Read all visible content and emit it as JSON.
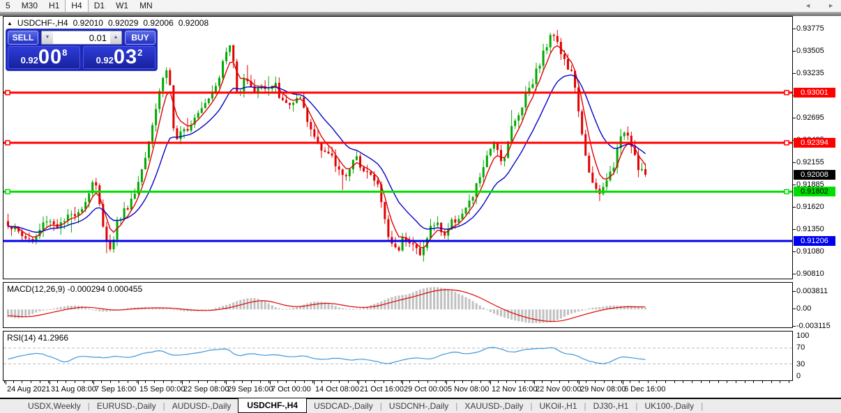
{
  "toolbar": {
    "timeframes": [
      "5",
      "M30",
      "H1",
      "H4",
      "D1",
      "W1",
      "MN"
    ],
    "active_timeframe": "H4"
  },
  "chart_header": {
    "collapse_icon": "▲",
    "symbol": "USDCHF-,H4",
    "open": "0.92010",
    "high": "0.92029",
    "low": "0.92006",
    "close": "0.92008"
  },
  "trade_panel": {
    "sell_label": "SELL",
    "buy_label": "BUY",
    "volume_value": "0.01",
    "volume_down_icon": "▼",
    "volume_up_icon": "▲",
    "sell_price": {
      "prefix": "0.92",
      "big": "00",
      "sup": "8"
    },
    "buy_price": {
      "prefix": "0.92",
      "big": "03",
      "sup": "2"
    }
  },
  "price_axis": {
    "ticks": [
      "0.93775",
      "0.93505",
      "0.93235",
      "0.92965",
      "0.92695",
      "0.92425",
      "0.92155",
      "0.91885",
      "0.91620",
      "0.91350",
      "0.91080",
      "0.90810"
    ],
    "badges": [
      {
        "label": "0.93001",
        "price": 0.93001,
        "bg": "#ff0000",
        "fg": "#ffffff"
      },
      {
        "label": "0.92394",
        "price": 0.92394,
        "bg": "#ff0000",
        "fg": "#ffffff"
      },
      {
        "label": "0.92008",
        "price": 0.92008,
        "bg": "#000000",
        "fg": "#ffffff"
      },
      {
        "label": "0.91802",
        "price": 0.91802,
        "bg": "#00dd00",
        "fg": "#000000"
      },
      {
        "label": "0.91206",
        "price": 0.91206,
        "bg": "#0000ee",
        "fg": "#ffffff"
      }
    ]
  },
  "indicators": {
    "macd": {
      "label": "MACD(12,26,9) -0.000294 0.000455",
      "axis_ticks": [
        "0.003811",
        "0.00",
        "-0.003115"
      ]
    },
    "rsi": {
      "label": "RSI(14) 41.2966",
      "axis_ticks": [
        "100",
        "70",
        "30",
        "0"
      ]
    }
  },
  "time_axis": {
    "labels": [
      "24 Aug 2021",
      "31 Aug 08:00",
      "7 Sep 16:00",
      "15 Sep 00:00",
      "22 Sep 08:00",
      "29 Sep 16:00",
      "7 Oct 00:00",
      "14 Oct 08:00",
      "21 Oct 16:00",
      "29 Oct 00:00",
      "5 Nov 08:00",
      "12 Nov 16:00",
      "22 Nov 00:00",
      "29 Nov 08:00",
      "6 Dec 16:00"
    ]
  },
  "tabs": {
    "items": [
      "USDX,Weekly",
      "EURUSD-,Daily",
      "AUDUSD-,Daily",
      "USDCHF-,H4",
      "USDCAD-,Daily",
      "USDCNH-,Daily",
      "XAUUSD-,Daily",
      "UKOil-,H1",
      "DJ30-,H1",
      "UK100-,Daily"
    ],
    "active": "USDCHF-,H4",
    "scroll_left_icon": "◄",
    "scroll_right_icon": "►"
  },
  "colors": {
    "up": "#00a800",
    "down": "#e00000",
    "ma_fast": "#dd0000",
    "ma_slow": "#0000c8",
    "hline_red": "#ff0000",
    "hline_green": "#00dd00",
    "hline_blue": "#0000ee",
    "macd_hist": "#c0c0c0",
    "macd_signal": "#e00000",
    "rsi_line": "#3c96dc",
    "rsi_level": "#bbbbbb"
  },
  "chart_data": [
    {
      "type": "bar",
      "name": "USDCHF-,H4 price bars",
      "ylim": [
        0.90751,
        0.93919
      ],
      "bar_count": 182,
      "last_close": 0.92008,
      "hlines": [
        {
          "price": 0.93001,
          "color": "#ff0000",
          "handles": true
        },
        {
          "price": 0.92394,
          "color": "#ff0000",
          "handles": true
        },
        {
          "price": 0.91802,
          "color": "#00dd00",
          "handles": true
        },
        {
          "price": 0.91206,
          "color": "#0000ee",
          "handles": false
        }
      ],
      "close_anchors": [
        [
          0.0,
          0.9142
        ],
        [
          0.02,
          0.9128
        ],
        [
          0.04,
          0.912
        ],
        [
          0.06,
          0.9148
        ],
        [
          0.08,
          0.9138
        ],
        [
          0.1,
          0.9152
        ],
        [
          0.12,
          0.9165
        ],
        [
          0.135,
          0.9198
        ],
        [
          0.148,
          0.9145
        ],
        [
          0.16,
          0.9108
        ],
        [
          0.172,
          0.9145
        ],
        [
          0.185,
          0.916
        ],
        [
          0.2,
          0.918
        ],
        [
          0.215,
          0.9225
        ],
        [
          0.23,
          0.9275
        ],
        [
          0.243,
          0.932
        ],
        [
          0.252,
          0.933
        ],
        [
          0.262,
          0.9235
        ],
        [
          0.272,
          0.925
        ],
        [
          0.285,
          0.9262
        ],
        [
          0.3,
          0.9282
        ],
        [
          0.315,
          0.9295
        ],
        [
          0.33,
          0.9318
        ],
        [
          0.342,
          0.9348
        ],
        [
          0.35,
          0.936
        ],
        [
          0.36,
          0.9295
        ],
        [
          0.372,
          0.9325
        ],
        [
          0.383,
          0.93
        ],
        [
          0.395,
          0.931
        ],
        [
          0.405,
          0.9302
        ],
        [
          0.42,
          0.9308
        ],
        [
          0.432,
          0.9285
        ],
        [
          0.445,
          0.9288
        ],
        [
          0.458,
          0.9292
        ],
        [
          0.47,
          0.9262
        ],
        [
          0.482,
          0.9245
        ],
        [
          0.495,
          0.9232
        ],
        [
          0.508,
          0.922
        ],
        [
          0.52,
          0.9205
        ],
        [
          0.532,
          0.9202
        ],
        [
          0.545,
          0.922
        ],
        [
          0.558,
          0.921
        ],
        [
          0.57,
          0.9198
        ],
        [
          0.582,
          0.9185
        ],
        [
          0.595,
          0.9128
        ],
        [
          0.61,
          0.9108
        ],
        [
          0.622,
          0.9128
        ],
        [
          0.635,
          0.9118
        ],
        [
          0.648,
          0.91
        ],
        [
          0.66,
          0.9135
        ],
        [
          0.672,
          0.9142
        ],
        [
          0.685,
          0.9128
        ],
        [
          0.698,
          0.9145
        ],
        [
          0.71,
          0.9152
        ],
        [
          0.722,
          0.9162
        ],
        [
          0.732,
          0.918
        ],
        [
          0.745,
          0.921
        ],
        [
          0.755,
          0.9225
        ],
        [
          0.765,
          0.9245
        ],
        [
          0.775,
          0.9212
        ],
        [
          0.788,
          0.9255
        ],
        [
          0.8,
          0.927
        ],
        [
          0.812,
          0.93
        ],
        [
          0.825,
          0.9318
        ],
        [
          0.838,
          0.9345
        ],
        [
          0.85,
          0.9365
        ],
        [
          0.858,
          0.9375
        ],
        [
          0.868,
          0.9348
        ],
        [
          0.878,
          0.933
        ],
        [
          0.888,
          0.9318
        ],
        [
          0.898,
          0.9255
        ],
        [
          0.908,
          0.922
        ],
        [
          0.918,
          0.9185
        ],
        [
          0.928,
          0.9175
        ],
        [
          0.938,
          0.9192
        ],
        [
          0.948,
          0.9208
        ],
        [
          0.958,
          0.9235
        ],
        [
          0.968,
          0.9258
        ],
        [
          0.978,
          0.924
        ],
        [
          0.988,
          0.9212
        ],
        [
          1.0,
          0.92008
        ]
      ]
    },
    {
      "type": "area",
      "name": "MACD(12,26,9)",
      "ylim": [
        -0.0041,
        0.0061
      ],
      "anchors": [
        [
          0.0,
          -0.0013
        ],
        [
          0.03,
          -0.0019
        ],
        [
          0.06,
          -0.001
        ],
        [
          0.09,
          0.0
        ],
        [
          0.12,
          0.0007
        ],
        [
          0.145,
          0.0002
        ],
        [
          0.17,
          -0.0003
        ],
        [
          0.2,
          0.0002
        ],
        [
          0.23,
          0.0004
        ],
        [
          0.26,
          0.0003
        ],
        [
          0.29,
          -0.0002
        ],
        [
          0.32,
          -0.0003
        ],
        [
          0.35,
          0.0004
        ],
        [
          0.38,
          0.0017
        ],
        [
          0.405,
          0.0023
        ],
        [
          0.43,
          0.001
        ],
        [
          0.455,
          0.0004
        ],
        [
          0.48,
          0.0012
        ],
        [
          0.505,
          0.0016
        ],
        [
          0.53,
          0.0008
        ],
        [
          0.555,
          0.0003
        ],
        [
          0.58,
          0.0007
        ],
        [
          0.61,
          0.002
        ],
        [
          0.64,
          0.003
        ],
        [
          0.665,
          0.0042
        ],
        [
          0.69,
          0.0047
        ],
        [
          0.715,
          0.0042
        ],
        [
          0.74,
          0.0028
        ],
        [
          0.765,
          0.0008
        ],
        [
          0.79,
          -0.0008
        ],
        [
          0.815,
          -0.002
        ],
        [
          0.84,
          -0.0027
        ],
        [
          0.865,
          -0.0029
        ],
        [
          0.89,
          -0.0018
        ],
        [
          0.92,
          -0.0005
        ],
        [
          0.95,
          0.0004
        ],
        [
          0.975,
          0.0007
        ],
        [
          1.0,
          0.0005
        ]
      ]
    },
    {
      "type": "line",
      "name": "RSI(14)",
      "ylim": [
        0,
        100
      ],
      "levels": [
        70,
        30
      ],
      "last_value": 41.2966,
      "anchors": [
        [
          0.0,
          42
        ],
        [
          0.02,
          50
        ],
        [
          0.05,
          58
        ],
        [
          0.07,
          45
        ],
        [
          0.09,
          33
        ],
        [
          0.11,
          52
        ],
        [
          0.13,
          48
        ],
        [
          0.155,
          45
        ],
        [
          0.17,
          52
        ],
        [
          0.19,
          47
        ],
        [
          0.21,
          55
        ],
        [
          0.24,
          68
        ],
        [
          0.26,
          50
        ],
        [
          0.29,
          58
        ],
        [
          0.32,
          65
        ],
        [
          0.345,
          70
        ],
        [
          0.36,
          48
        ],
        [
          0.38,
          58
        ],
        [
          0.4,
          50
        ],
        [
          0.42,
          55
        ],
        [
          0.44,
          48
        ],
        [
          0.46,
          52
        ],
        [
          0.48,
          44
        ],
        [
          0.5,
          40
        ],
        [
          0.52,
          46
        ],
        [
          0.54,
          38
        ],
        [
          0.56,
          44
        ],
        [
          0.58,
          35
        ],
        [
          0.6,
          30
        ],
        [
          0.62,
          42
        ],
        [
          0.64,
          48
        ],
        [
          0.66,
          40
        ],
        [
          0.68,
          52
        ],
        [
          0.7,
          60
        ],
        [
          0.72,
          55
        ],
        [
          0.74,
          62
        ],
        [
          0.755,
          75
        ],
        [
          0.77,
          68
        ],
        [
          0.79,
          60
        ],
        [
          0.81,
          66
        ],
        [
          0.83,
          70
        ],
        [
          0.855,
          72
        ],
        [
          0.87,
          58
        ],
        [
          0.89,
          52
        ],
        [
          0.905,
          40
        ],
        [
          0.92,
          35
        ],
        [
          0.935,
          28
        ],
        [
          0.95,
          40
        ],
        [
          0.965,
          52
        ],
        [
          0.98,
          45
        ],
        [
          1.0,
          41.3
        ]
      ]
    }
  ]
}
